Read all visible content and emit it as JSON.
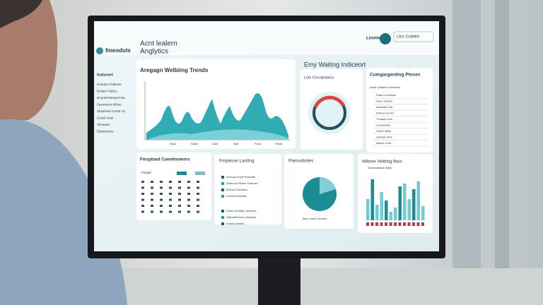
{
  "header": {
    "logo": "fmeoduts",
    "title_line1": "Acnt lealern",
    "title_line2": "Anglytics",
    "user": "Lssmer",
    "button": "Ltcs Cotetnt"
  },
  "sidebar": {
    "heading": "Inalsoert",
    "items": [
      "Ceedoor Patients",
      "Bosteri Visbes",
      "Doureel Dessd Fats",
      "Fpenterres Wlore",
      "Shasbewl Corrte Cs",
      "Ceosk Srail",
      "Tsinaasis",
      "Ebaswetres"
    ]
  },
  "section_title": "Emy Waiting Indiceort",
  "trends": {
    "title": "Aregagn Welbiing Trends",
    "x_labels": [
      "Wsst",
      "Sdost",
      "Sabt",
      "Salt",
      "Fnea",
      "Bmat"
    ]
  },
  "donut_card": {
    "title": "Lstir Chcnteatess"
  },
  "table_card": {
    "title": "Cumgargarding Ptoses",
    "subtitle": "Iotsis Ctaisine Cereleres",
    "rows": [
      "Faas Corveless",
      "Snuo Cetnas",
      "Daswisel Sat",
      "Ertsres Gcves",
      "Tnnasis Lets",
      "Cenaseshs",
      "Sherm Bats",
      "Latroeir Sres",
      "Iolscrs Cetn"
    ]
  },
  "calendar_card": {
    "title": "Fmspbaid Cuenitnutenrs",
    "label": "Pssaid"
  },
  "list_card": {
    "title": "Fmpasse Lasting",
    "items": [
      "Soronso Dedt Poscetts",
      "Setecucti Stalvs Omicutd",
      "Edrrsnt Parsstes",
      "Creseen Bicitsis",
      "Snuco Dmatts Cavwees",
      "Oatmdetheeni Clearetis",
      "Suest cotnmis"
    ]
  },
  "pie_card": {
    "title": "Pamudisties",
    "footer": "Itsso casnt Oeodos"
  },
  "bars_card": {
    "title": "Wiltsee Veilbing ffass",
    "subtitle": "Soenaseitiaw Batis"
  }
}
